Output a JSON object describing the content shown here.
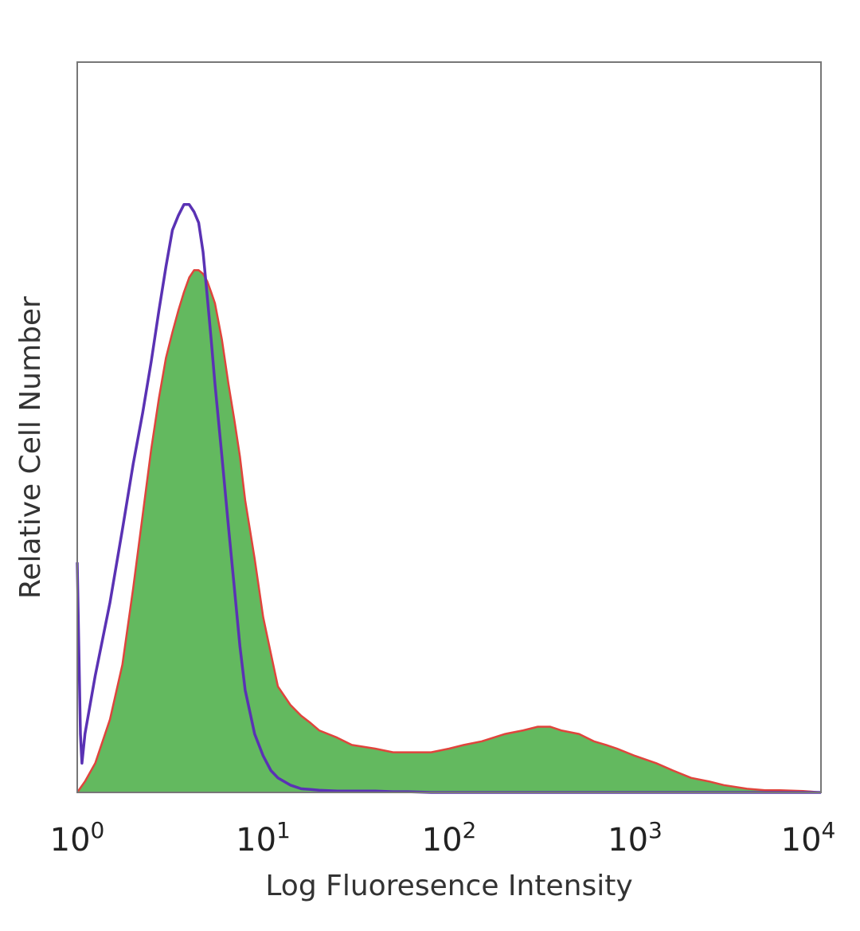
{
  "chart_data": {
    "type": "area",
    "title": "",
    "xlabel": "Log Fluoresence Intensity",
    "ylabel": "Relative Cell Number",
    "xscale": "log",
    "xlim": [
      1,
      10000
    ],
    "ylim": [
      0,
      100
    ],
    "grid": false,
    "legend": "none",
    "x_ticks": [
      {
        "base": "10",
        "exp": "0"
      },
      {
        "base": "10",
        "exp": "1"
      },
      {
        "base": "10",
        "exp": "2"
      },
      {
        "base": "10",
        "exp": "3"
      },
      {
        "base": "10",
        "exp": "4"
      }
    ],
    "series": [
      {
        "style": "filled",
        "fill": "#63b95f",
        "stroke": "#e0443c",
        "x": [
          1,
          1.1,
          1.25,
          1.5,
          1.75,
          2,
          2.25,
          2.5,
          2.75,
          3,
          3.25,
          3.5,
          3.75,
          4,
          4.25,
          4.5,
          4.75,
          5,
          5.25,
          5.5,
          6,
          6.5,
          7,
          7.5,
          8,
          9,
          10,
          11,
          12,
          14,
          16,
          18,
          20,
          25,
          30,
          40,
          50,
          60,
          70,
          80,
          100,
          120,
          150,
          200,
          250,
          300,
          350,
          400,
          500,
          600,
          700,
          800,
          1000,
          1300,
          1600,
          2000,
          2500,
          3000,
          4000,
          5000,
          6000,
          8000,
          10000
        ],
        "values": [
          0,
          1.5,
          4,
          10,
          17.5,
          28,
          38,
          47,
          54,
          59.5,
          63,
          66,
          68.5,
          70.5,
          71.5,
          71.5,
          71,
          70,
          68.5,
          67,
          62,
          56,
          51,
          46,
          40,
          32,
          24,
          19,
          14.5,
          12,
          10.5,
          9.5,
          8.5,
          7.5,
          6.5,
          6,
          5.5,
          5.5,
          5.5,
          5.5,
          6,
          6.5,
          7,
          8,
          8.5,
          9,
          9,
          8.5,
          8,
          7,
          6.5,
          6,
          5,
          4,
          3,
          2,
          1.5,
          1,
          0.5,
          0.3,
          0.3,
          0.2,
          0
        ]
      },
      {
        "style": "outline",
        "stroke": "#5a32b4",
        "x": [
          1,
          1.04,
          1.06,
          1.1,
          1.25,
          1.5,
          1.75,
          2,
          2.25,
          2.5,
          2.75,
          3,
          3.25,
          3.5,
          3.75,
          4,
          4.25,
          4.5,
          4.75,
          5,
          5.25,
          5.5,
          6,
          6.5,
          7,
          7.5,
          8,
          9,
          10,
          11,
          12,
          14,
          16,
          18,
          20,
          25,
          30,
          40,
          50,
          60,
          80,
          100,
          10000
        ],
        "values": [
          31.5,
          8,
          4,
          8,
          16,
          26,
          36,
          45,
          52,
          59,
          66,
          72,
          77,
          79,
          80.5,
          80.5,
          79.5,
          78,
          74,
          68,
          62,
          56,
          46,
          36.5,
          28,
          20,
          14,
          8,
          5,
          3,
          2,
          1,
          0.5,
          0.4,
          0.3,
          0.2,
          0.2,
          0.2,
          0.1,
          0.1,
          0,
          0,
          0
        ]
      }
    ]
  }
}
